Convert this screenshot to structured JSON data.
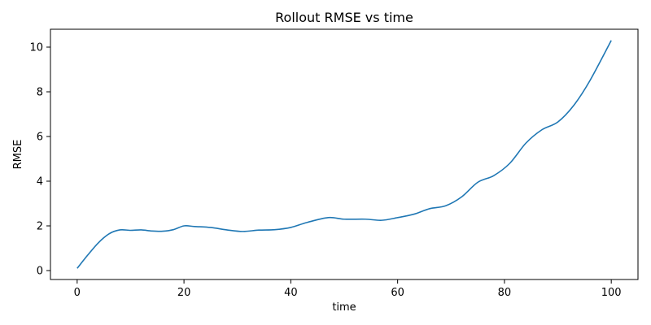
{
  "chart_data": {
    "type": "line",
    "title": "Rollout RMSE vs time",
    "xlabel": "time",
    "ylabel": "RMSE",
    "xlim": [
      -5,
      105
    ],
    "ylim": [
      -0.4,
      10.8
    ],
    "xticks": [
      0,
      20,
      40,
      60,
      80,
      100
    ],
    "yticks": [
      0,
      2,
      4,
      6,
      8,
      10
    ],
    "grid": false,
    "series": [
      {
        "color": "#1f77b4",
        "x": [
          0,
          2,
          4,
          6,
          8,
          10,
          12,
          14,
          16,
          18,
          20,
          22,
          25,
          28,
          31,
          34,
          37,
          40,
          43,
          47,
          50,
          54,
          57,
          60,
          63,
          66,
          69,
          72,
          75,
          78,
          81,
          84,
          87,
          90,
          93,
          96,
          100
        ],
        "y": [
          0.1,
          0.7,
          1.25,
          1.65,
          1.82,
          1.8,
          1.82,
          1.77,
          1.76,
          1.83,
          2.0,
          1.97,
          1.93,
          1.82,
          1.75,
          1.81,
          1.83,
          1.93,
          2.15,
          2.37,
          2.3,
          2.3,
          2.25,
          2.37,
          2.52,
          2.77,
          2.9,
          3.3,
          3.95,
          4.25,
          4.8,
          5.7,
          6.3,
          6.65,
          7.4,
          8.5,
          10.3
        ]
      }
    ]
  }
}
